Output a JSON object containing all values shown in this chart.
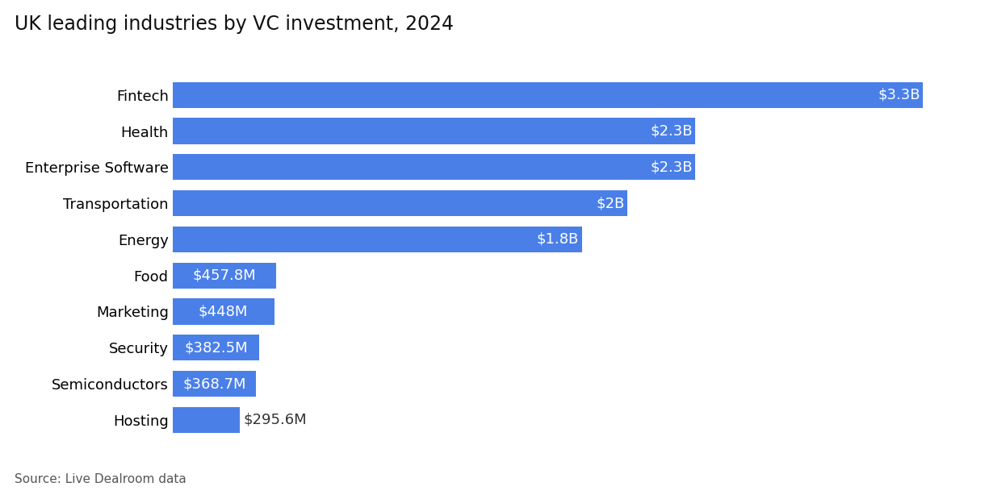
{
  "title": "UK leading industries by VC investment, 2024",
  "source": "Source: Live Dealroom data",
  "categories": [
    "Hosting",
    "Semiconductors",
    "Security",
    "Marketing",
    "Food",
    "Energy",
    "Transportation",
    "Enterprise Software",
    "Health",
    "Fintech"
  ],
  "values": [
    295.6,
    368.7,
    382.5,
    448.0,
    457.8,
    1800.0,
    2000.0,
    2300.0,
    2300.0,
    3300.0
  ],
  "labels": [
    "$295.6M",
    "$368.7M",
    "$382.5M",
    "$448M",
    "$457.8M",
    "$1.8B",
    "$2B",
    "$2.3B",
    "$2.3B",
    "$3.3B"
  ],
  "bar_color": "#4a7fe8",
  "text_color_inside": "#ffffff",
  "text_color_outside": "#333333",
  "title_fontsize": 17,
  "label_fontsize": 13,
  "tick_fontsize": 13,
  "source_fontsize": 11,
  "background_color": "#ffffff",
  "threshold_inside": 368.8,
  "bar_height": 0.72
}
